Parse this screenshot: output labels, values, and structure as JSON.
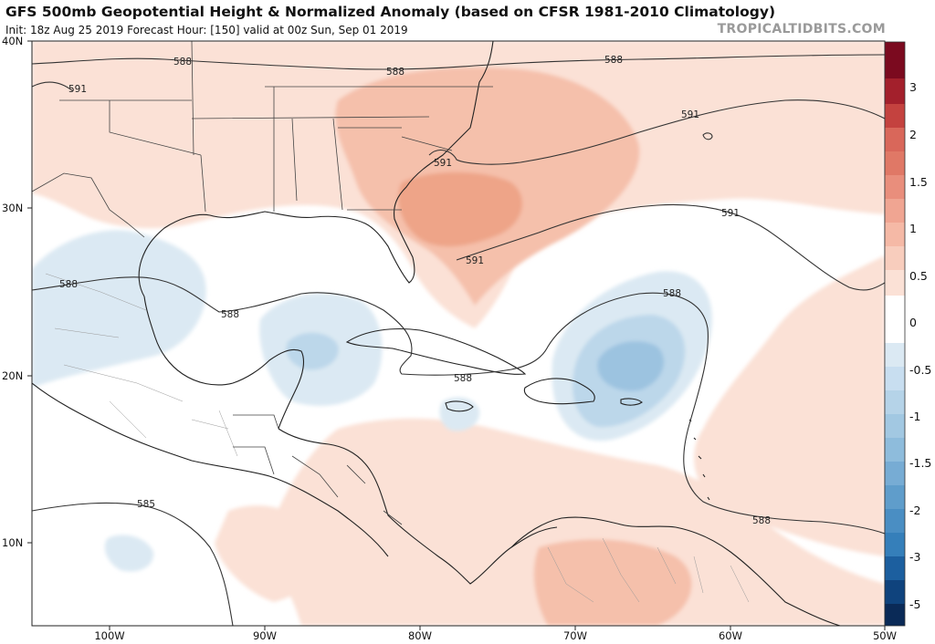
{
  "header": {
    "title": "GFS 500mb Geopotential Height & Normalized Anomaly (based on CFSR 1981-2010 Climatology)",
    "subtitle": "Init: 18z Aug 25 2019   Forecast Hour: [150]   valid at 00z Sun, Sep 01 2019",
    "brand": "TROPICALTIDBITS.COM"
  },
  "axes": {
    "lat_labels": [
      "40N",
      "30N",
      "20N",
      "10N"
    ],
    "lon_labels": [
      "100W",
      "90W",
      "80W",
      "70W",
      "60W",
      "50W"
    ]
  },
  "contours": {
    "labels": [
      "588",
      "591",
      "588",
      "588",
      "591",
      "591",
      "591",
      "591",
      "588",
      "588",
      "588",
      "588",
      "585",
      "588"
    ]
  },
  "colorbar": {
    "labels": [
      "3",
      "2",
      "1.5",
      "1",
      "0.5",
      "0",
      "-0.5",
      "-1",
      "-1.5",
      "-2",
      "-3",
      "-5"
    ],
    "colors": [
      "#7b0a1f",
      "#a3202c",
      "#c4423f",
      "#d9675a",
      "#e98e7c",
      "#f5b9a6",
      "#fbe1d6",
      "#ffffff",
      "#dbe9f3",
      "#b5d3e8",
      "#8ebcdc",
      "#5f9dcb",
      "#357fba",
      "#1c5f9f",
      "#0f437d",
      "#0a2a57"
    ]
  },
  "palette": {
    "warm_light": "#fbe1d6",
    "warm_mid": "#f5c0ab",
    "warm_strong": "#eea488",
    "cool_light": "#dbe9f3",
    "cool_mid": "#bcd7ea",
    "cool_strong": "#9cc3e0"
  }
}
